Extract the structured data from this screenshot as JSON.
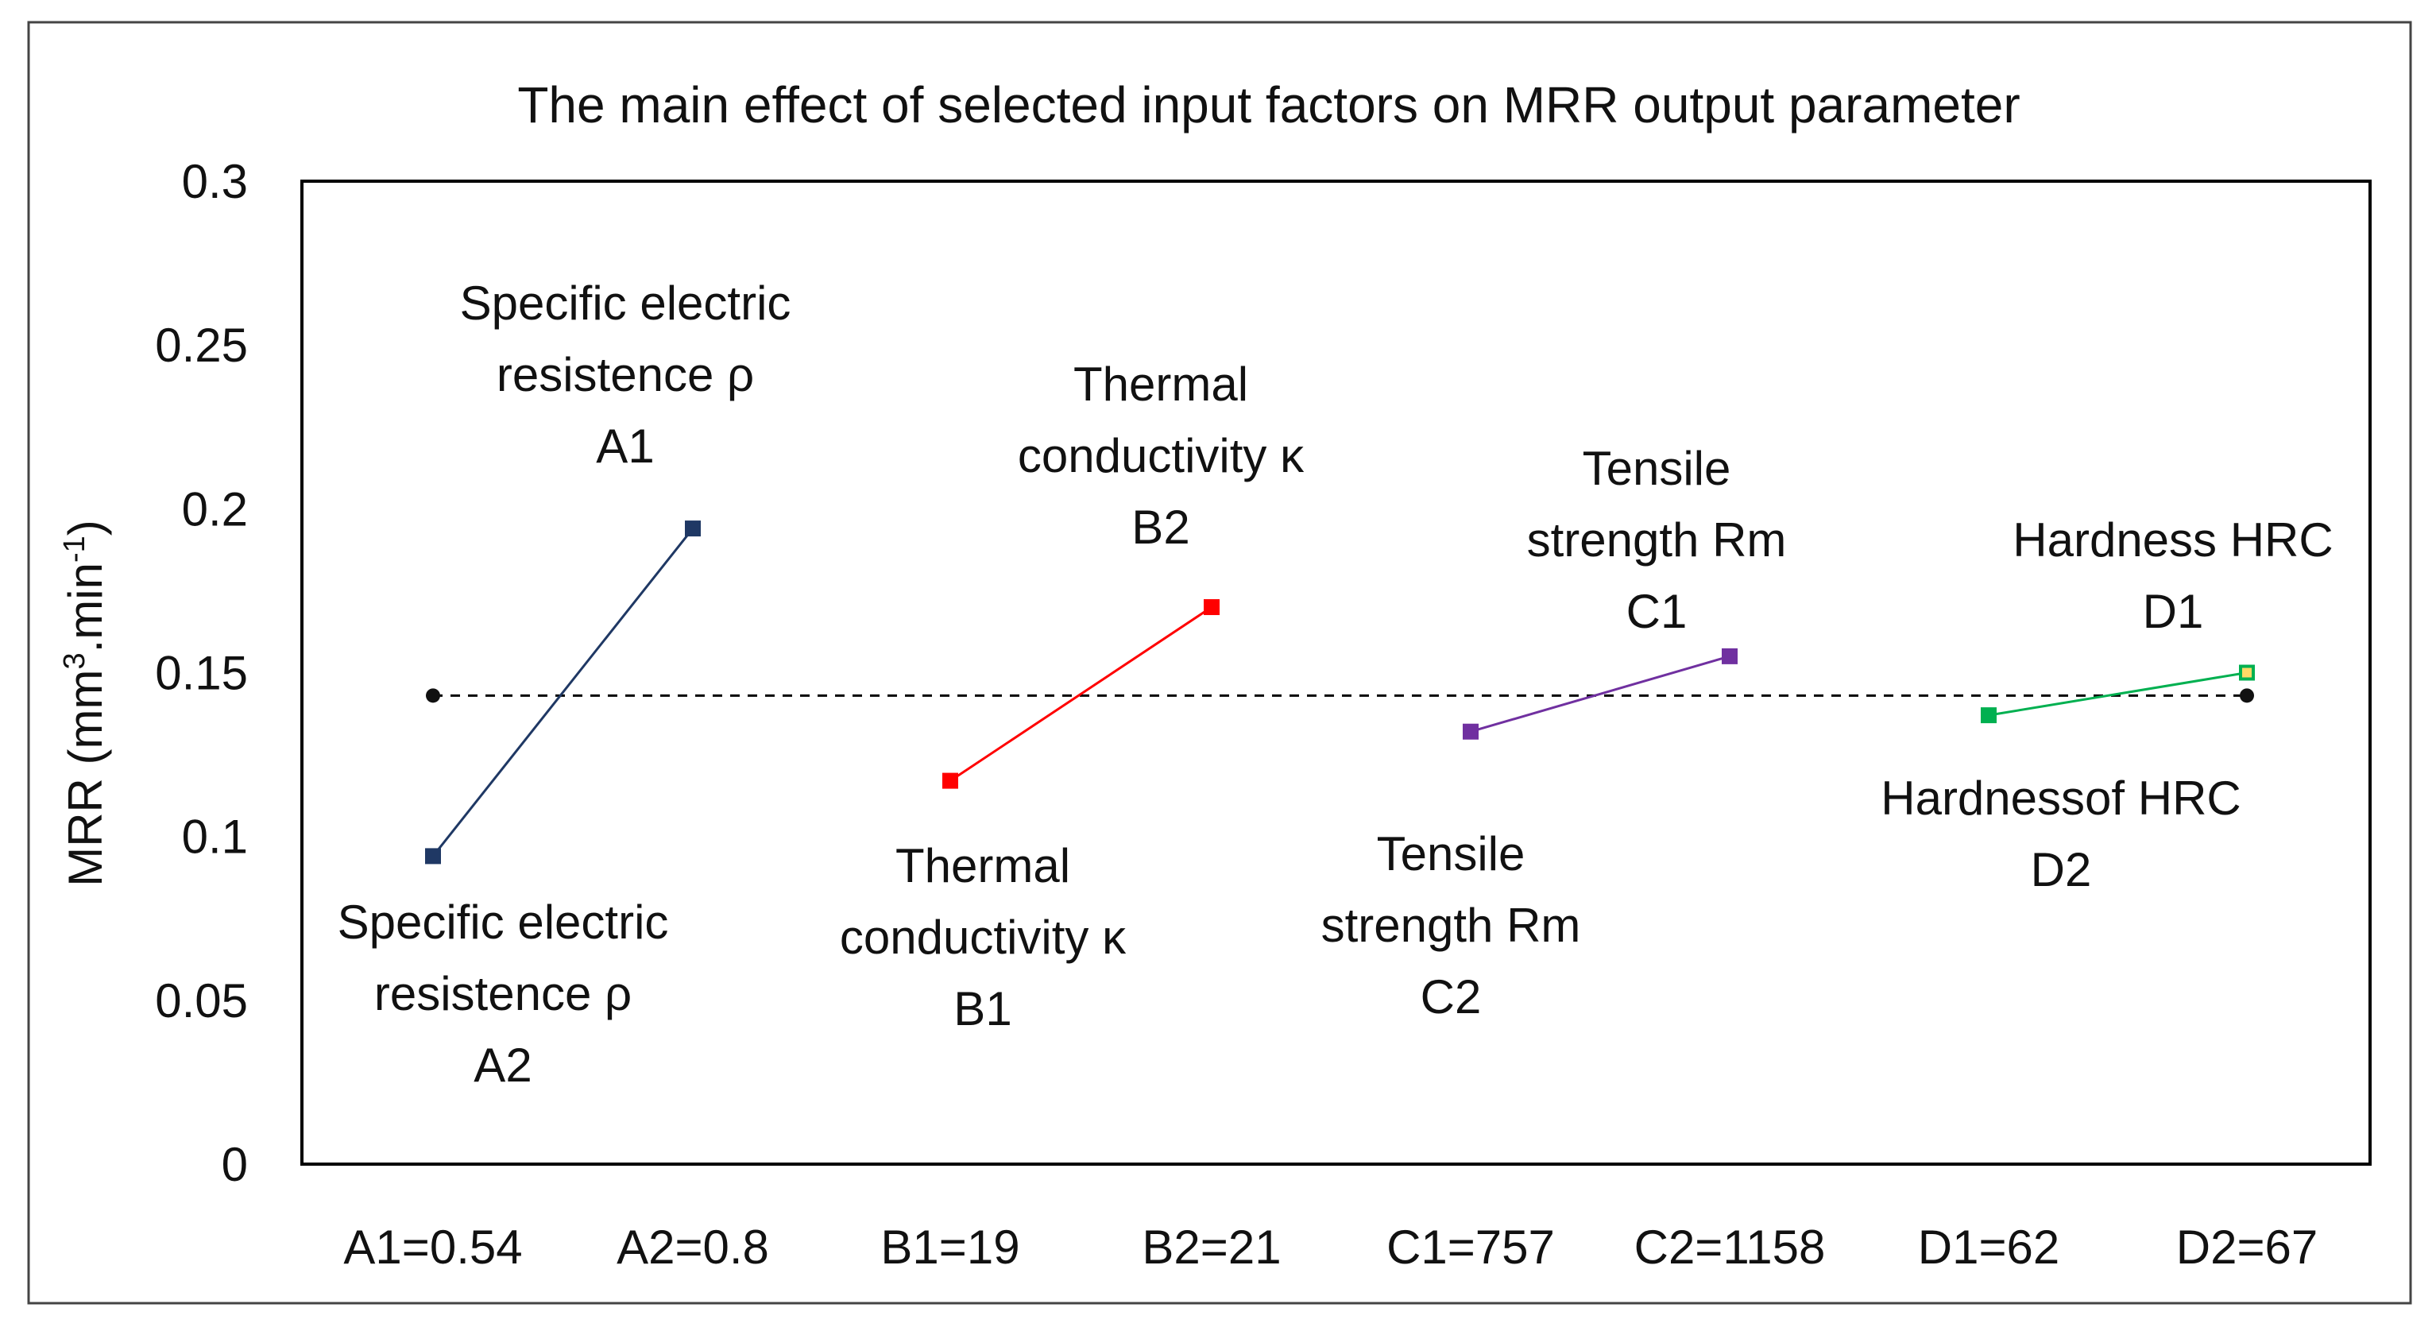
{
  "chart_data": {
    "type": "line",
    "title": "The main effect of selected input factors on MRR output parameter",
    "ylabel_main": "MRR (mm",
    "ylabel_sup1": "3",
    "ylabel_mid": ".min",
    "ylabel_sup2": "-1",
    "ylabel_end": ")",
    "xlabel": "",
    "ylim": [
      0,
      0.3
    ],
    "yticks": [
      "0",
      "0.05",
      "0.1",
      "0.15",
      "0.2",
      "0.25",
      "0.3"
    ],
    "ytick_values": [
      0,
      0.05,
      0.1,
      0.15,
      0.2,
      0.25,
      0.3
    ],
    "categories": [
      "A1=0.54",
      "A2=0.8",
      "B1=19",
      "B2=21",
      "C1=757",
      "C2=1158",
      "D1=62",
      "D2=67"
    ],
    "mean_line": {
      "value": 0.143,
      "style": "dashed",
      "color": "#000000"
    },
    "series": [
      {
        "name": "Specific electric resistence ρ",
        "color": "#1F3864",
        "x": [
          0,
          1
        ],
        "values": [
          0.094,
          0.194
        ]
      },
      {
        "name": "Thermal conductivity κ",
        "color": "#FF0000",
        "x": [
          2,
          3
        ],
        "values": [
          0.117,
          0.17
        ]
      },
      {
        "name": "Tensile strength Rm",
        "color": "#7030A0",
        "x": [
          4,
          5
        ],
        "values": [
          0.132,
          0.155
        ]
      },
      {
        "name": "Hardness HRC",
        "color": "#00B050",
        "x": [
          6,
          7
        ],
        "values": [
          0.137,
          0.15
        ]
      }
    ],
    "annotations": [
      {
        "id": "ann-a1",
        "lines": [
          "Specific electric",
          "resistence ρ",
          "A1"
        ]
      },
      {
        "id": "ann-a2",
        "lines": [
          "Specific electric",
          "resistence ρ",
          "A2"
        ]
      },
      {
        "id": "ann-b2",
        "lines": [
          "Thermal",
          "conductivity κ",
          "B2"
        ]
      },
      {
        "id": "ann-b1",
        "lines": [
          "Thermal",
          "conductivity κ",
          "B1"
        ]
      },
      {
        "id": "ann-c1",
        "lines": [
          "Tensile",
          "strength Rm",
          "C1"
        ]
      },
      {
        "id": "ann-c2",
        "lines": [
          "Tensile",
          "strength Rm",
          "C2"
        ]
      },
      {
        "id": "ann-d1",
        "lines": [
          "Hardness HRC",
          "D1"
        ]
      },
      {
        "id": "ann-d2",
        "lines": [
          "Hardnessof HRC",
          "D2"
        ]
      }
    ]
  }
}
